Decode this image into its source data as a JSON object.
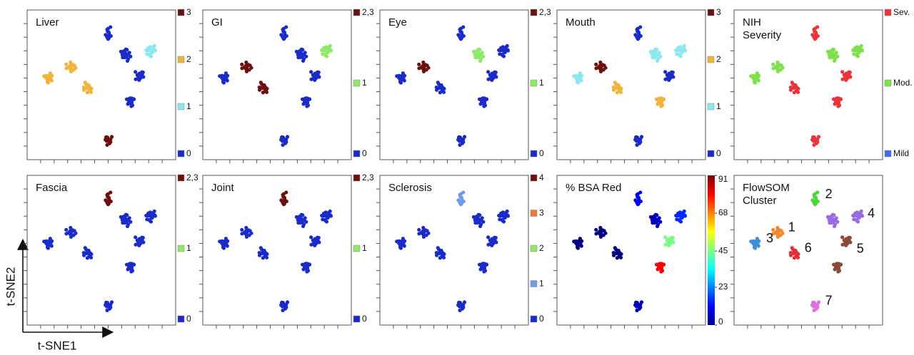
{
  "chart_data": {
    "type": "scatter",
    "x_label": "t-SNE1",
    "y_label": "t-SNE2",
    "blobs": [
      {
        "x": 55,
        "y": 87
      },
      {
        "x": 68,
        "y": 72
      },
      {
        "x": 86,
        "y": 74
      },
      {
        "x": 78,
        "y": 57
      },
      {
        "x": 72,
        "y": 38
      },
      {
        "x": 12,
        "y": 55
      },
      {
        "x": 28,
        "y": 63
      },
      {
        "x": 40,
        "y": 48
      },
      {
        "x": 55,
        "y": 10
      }
    ],
    "panels": [
      {
        "kind": "levels",
        "title": [
          "Liver"
        ],
        "levels": [
          {
            "label": "0",
            "color": "#1a2bc8"
          },
          {
            "label": "1",
            "color": "#8be8ee"
          },
          {
            "label": "2",
            "color": "#f0b43c"
          },
          {
            "label": "3",
            "color": "#6b0f0f"
          }
        ],
        "values": [
          0,
          0,
          1,
          0,
          0,
          2,
          2,
          2,
          3
        ]
      },
      {
        "kind": "levels",
        "title": [
          "GI"
        ],
        "levels": [
          {
            "label": "0",
            "color": "#1a2bc8"
          },
          {
            "label": "1",
            "color": "#8ee86a"
          },
          {
            "label": "2,3",
            "color": "#6b0f0f"
          }
        ],
        "values": [
          0,
          0,
          1,
          0,
          0,
          0,
          2,
          2,
          0
        ]
      },
      {
        "kind": "levels",
        "title": [
          "Eye"
        ],
        "levels": [
          {
            "label": "0",
            "color": "#1a2bc8"
          },
          {
            "label": "1",
            "color": "#8ee86a"
          },
          {
            "label": "2,3",
            "color": "#6b0f0f"
          }
        ],
        "values": [
          0,
          1,
          0,
          0,
          0,
          0,
          2,
          0,
          0
        ]
      },
      {
        "kind": "levels",
        "title": [
          "Mouth"
        ],
        "levels": [
          {
            "label": "0",
            "color": "#1a2bc8"
          },
          {
            "label": "1",
            "color": "#8be8ee"
          },
          {
            "label": "2",
            "color": "#f0b43c"
          },
          {
            "label": "3",
            "color": "#6b0f0f"
          }
        ],
        "values": [
          0,
          1,
          1,
          0,
          2,
          1,
          3,
          2,
          0
        ]
      },
      {
        "kind": "levels",
        "title": [
          "NIH",
          "Severity"
        ],
        "levels": [
          {
            "label": "Mild",
            "color": "#3f6fe0"
          },
          {
            "label": "Mod.",
            "color": "#7ee04a"
          },
          {
            "label": "Sev.",
            "color": "#e8343a"
          }
        ],
        "values": [
          2,
          1,
          1,
          2,
          2,
          1,
          1,
          2,
          2
        ]
      },
      {
        "kind": "levels",
        "title": [
          "Fascia"
        ],
        "levels": [
          {
            "label": "0",
            "color": "#1a2bc8"
          },
          {
            "label": "1",
            "color": "#8ee86a"
          },
          {
            "label": "2,3",
            "color": "#6b0f0f"
          }
        ],
        "values": [
          2,
          0,
          0,
          0,
          0,
          0,
          0,
          0,
          0
        ]
      },
      {
        "kind": "levels",
        "title": [
          "Joint"
        ],
        "levels": [
          {
            "label": "0",
            "color": "#1a2bc8"
          },
          {
            "label": "1",
            "color": "#8ee86a"
          },
          {
            "label": "2,3",
            "color": "#6b0f0f"
          }
        ],
        "values": [
          2,
          0,
          0,
          0,
          0,
          0,
          0,
          0,
          0
        ]
      },
      {
        "kind": "levels",
        "title": [
          "Sclerosis"
        ],
        "levels": [
          {
            "label": "0",
            "color": "#1a2bc8"
          },
          {
            "label": "1",
            "color": "#6f9ae8"
          },
          {
            "label": "2",
            "color": "#8ee86a"
          },
          {
            "label": "3",
            "color": "#ee7a3a"
          },
          {
            "label": "4",
            "color": "#6b0f0f"
          }
        ],
        "values": [
          1,
          0,
          0,
          0,
          0,
          0,
          0,
          0,
          0
        ]
      },
      {
        "kind": "colorbar",
        "title": [
          "% BSA Red"
        ],
        "ylim": [
          0,
          91
        ],
        "yticks": [
          0,
          23,
          45,
          68,
          91
        ],
        "values": [
          10,
          5,
          15,
          45,
          80,
          0,
          0,
          0,
          5
        ]
      },
      {
        "kind": "clusters",
        "title": [
          "FlowSOM",
          "Cluster"
        ],
        "clusters": [
          {
            "label": "1",
            "color": "#f08a2c"
          },
          {
            "label": "2",
            "color": "#4fd43a"
          },
          {
            "label": "3",
            "color": "#3d8fd8"
          },
          {
            "label": "4",
            "color": "#9a6ae0"
          },
          {
            "label": "5",
            "color": "#8a4a3a"
          },
          {
            "label": "6",
            "color": "#e0303a"
          },
          {
            "label": "7",
            "color": "#e070e0"
          }
        ],
        "values": [
          2,
          4,
          4,
          5,
          5,
          3,
          1,
          6,
          7
        ]
      }
    ]
  }
}
